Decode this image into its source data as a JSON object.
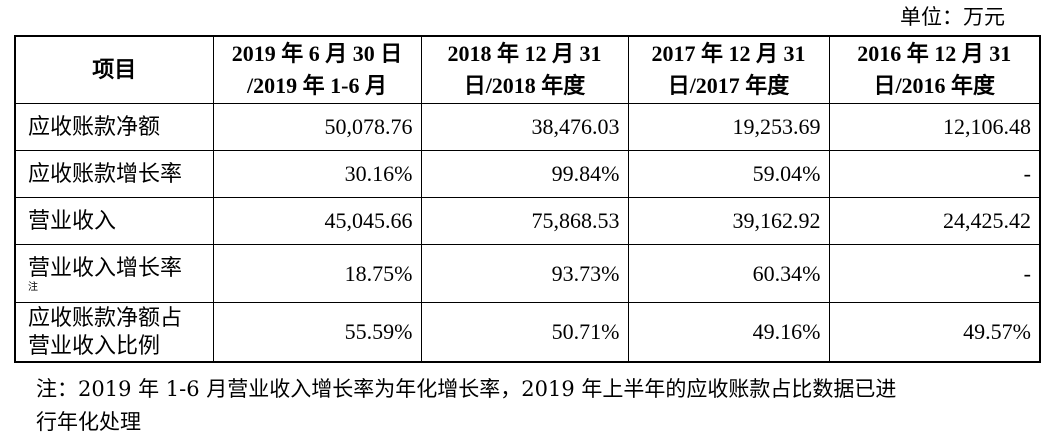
{
  "unit": "单位：万元",
  "headers": {
    "item": "项目",
    "c1_l1": "2019 年 6 月 30 日",
    "c1_l2": "/2019 年 1-6 月",
    "c2_l1": "2018 年 12 月 31",
    "c2_l2": "日/2018 年度",
    "c3_l1": "2017 年 12 月 31",
    "c3_l2": "日/2017 年度",
    "c4_l1": "2016 年 12 月 31",
    "c4_l2": "日/2016 年度"
  },
  "rows": [
    {
      "label": "应收账款净额",
      "v1": "50,078.76",
      "v2": "38,476.03",
      "v3": "19,253.69",
      "v4": "12,106.48"
    },
    {
      "label": "应收账款增长率",
      "v1": "30.16%",
      "v2": "99.84%",
      "v3": "59.04%",
      "v4": "-"
    },
    {
      "label": "营业收入",
      "v1": "45,045.66",
      "v2": "75,868.53",
      "v3": "39,162.92",
      "v4": "24,425.42"
    },
    {
      "label": "营业收入增长率",
      "sup": "注",
      "v1": "18.75%",
      "v2": "93.73%",
      "v3": "60.34%",
      "v4": "-"
    },
    {
      "label_l1": "应收账款净额占",
      "label_l2": "营业收入比例",
      "v1": "55.59%",
      "v2": "50.71%",
      "v3": "49.16%",
      "v4": "49.57%"
    }
  ],
  "note_l1": "注：2019 年 1-6 月营业收入增长率为年化增长率，2019 年上半年的应收账款占比数据已进",
  "note_l2": "行年化处理"
}
